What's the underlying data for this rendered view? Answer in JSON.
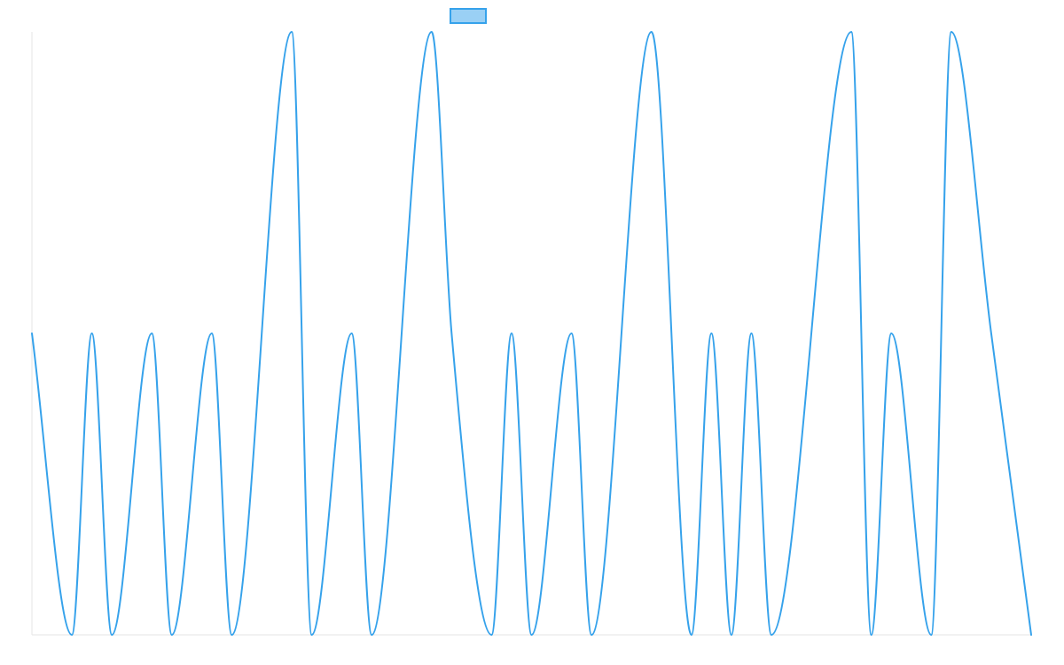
{
  "chart_data": {
    "type": "line",
    "title": "",
    "xlabel": "",
    "ylabel": "",
    "ylim": [
      0,
      2
    ],
    "grid": false,
    "legend": {
      "placement": "top-center"
    },
    "series": [
      {
        "color": "#36a2eb",
        "fill_color": "#9ad0f5",
        "values": [
          1,
          0,
          1,
          0,
          1,
          0,
          1,
          0,
          2,
          0,
          1,
          0,
          2,
          1,
          0,
          1,
          0,
          1,
          0,
          2,
          0,
          1,
          0,
          1,
          0,
          2,
          0,
          1,
          0,
          2,
          1,
          0
        ],
        "x": [
          0,
          2,
          3,
          4,
          6,
          7,
          9,
          10,
          13,
          14,
          16,
          17,
          20,
          21,
          23,
          24,
          25,
          27,
          28,
          31,
          33,
          34,
          35,
          36,
          37,
          41,
          42,
          43,
          45,
          46,
          48,
          50
        ]
      }
    ]
  }
}
